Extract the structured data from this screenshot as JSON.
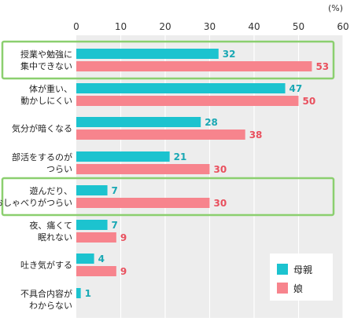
{
  "chart_data": {
    "type": "bar",
    "orientation": "horizontal",
    "unit": "(%)",
    "xlim": [
      0,
      60
    ],
    "ticks": [
      "0",
      "10",
      "20",
      "30",
      "40",
      "50",
      "60"
    ],
    "categories": [
      [
        "授業や勉強に",
        "集中できない"
      ],
      [
        "体が重い、",
        "動かしにくい"
      ],
      [
        "気分が暗くなる"
      ],
      [
        "部活をするのが",
        "つらい"
      ],
      [
        "遊んだり、",
        "おしゃべりがつらい"
      ],
      [
        "夜、痛くて",
        "眠れない"
      ],
      [
        "吐き気がする"
      ],
      [
        "不具合内容が",
        "わからない"
      ]
    ],
    "series": [
      {
        "name": "母親",
        "color": "#1cc3cf",
        "label_color": "#1aa8b4",
        "values": [
          32,
          47,
          28,
          21,
          7,
          7,
          4,
          1
        ]
      },
      {
        "name": "娘",
        "color": "#f7848d",
        "label_color": "#e9505e",
        "values": [
          53,
          50,
          38,
          30,
          30,
          9,
          9,
          null
        ]
      }
    ],
    "highlighted_categories": [
      0,
      4
    ],
    "highlight_color": "#8bcf6f",
    "legend_position": "bottom-right",
    "grid": true
  }
}
